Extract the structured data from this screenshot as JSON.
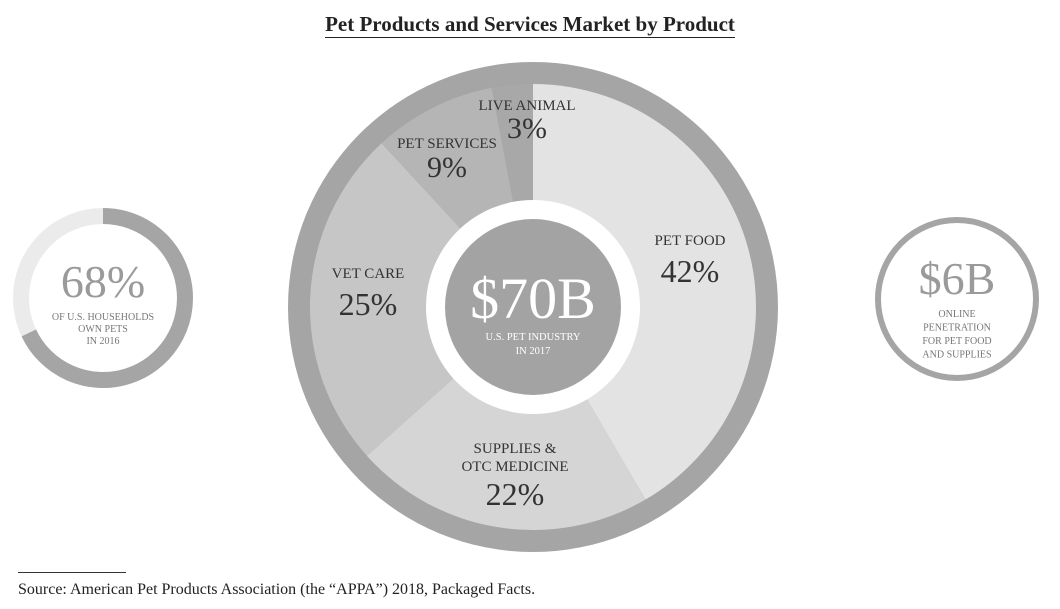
{
  "title": "Pet Products and Services Market by Product",
  "chart_data": {
    "type": "pie",
    "title": "Pet Products and Services Market by Product",
    "center": {
      "value": "$70B",
      "caption": [
        "U.S. PET INDUSTRY",
        "IN 2017"
      ]
    },
    "slices": [
      {
        "label": "PET FOOD",
        "value": 42,
        "value_label": "42%",
        "color": "#e3e3e3"
      },
      {
        "label": "SUPPLIES & OTC MEDICINE",
        "label_lines": [
          "SUPPLIES &",
          "OTC MEDICINE"
        ],
        "value": 22,
        "value_label": "22%",
        "color": "#d5d5d5"
      },
      {
        "label": "VET CARE",
        "value": 25,
        "value_label": "25%",
        "color": "#c6c6c6"
      },
      {
        "label": "PET SERVICES",
        "value": 9,
        "value_label": "9%",
        "color": "#b5b5b5"
      },
      {
        "label": "LIVE ANIMAL",
        "value": 3,
        "value_label": "3%",
        "color": "#a8a8a8"
      }
    ]
  },
  "households": {
    "value": "68%",
    "fraction": 0.68,
    "caption": [
      "OF U.S. HOUSEHOLDS",
      "OWN PETS",
      "IN 2016"
    ]
  },
  "online": {
    "value": "$6B",
    "caption": [
      "ONLINE",
      "PENETRATION",
      "FOR PET FOOD",
      "AND SUPPLIES"
    ]
  },
  "colors": {
    "ring": "#a5a5a5",
    "center": "#a3a3a3",
    "track": "#ebebeb",
    "text": "#333333",
    "caption": "#777777"
  },
  "source": "Source: American Pet Products Association (the “APPA”) 2018, Packaged Facts."
}
